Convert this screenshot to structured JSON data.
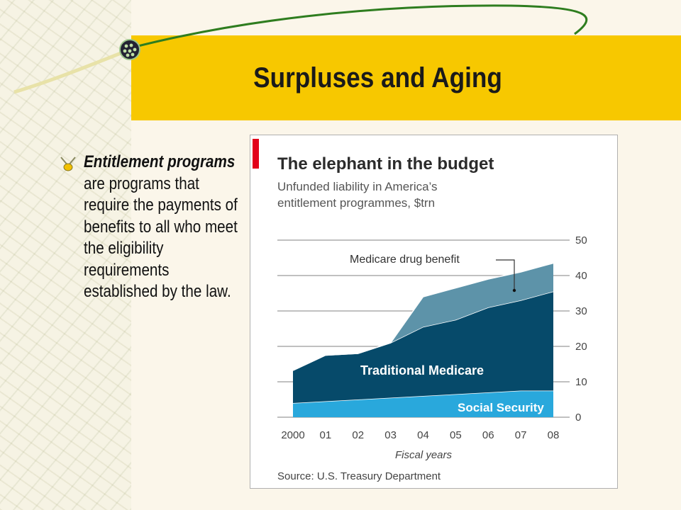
{
  "slide": {
    "title": "Surpluses and Aging",
    "bullet_term": "Entitlement programs",
    "bullet_text": " are programs that require the payments of benefits to all who meet the eligibility requirements established by the law."
  },
  "chart_data": {
    "type": "area",
    "title": "The elephant in the budget",
    "subtitle_line1": "Unfunded liability in America’s",
    "subtitle_line2": "entitlement programmes, $trn",
    "xlabel": "Fiscal years",
    "source": "Source: U.S. Treasury Department",
    "categories": [
      "2000",
      "01",
      "02",
      "03",
      "04",
      "05",
      "06",
      "07",
      "08"
    ],
    "yticks": [
      "0",
      "10",
      "20",
      "30",
      "40",
      "50"
    ],
    "ylim": [
      0,
      50
    ],
    "stacking": "cumulative",
    "series": [
      {
        "name": "Social Security",
        "values": [
          4,
          4.5,
          5,
          5.5,
          6,
          6.5,
          7,
          7.5,
          7.5
        ],
        "color": "#29a8dc"
      },
      {
        "name": "Traditional Medicare",
        "values": [
          13.2,
          17.5,
          18,
          21,
          25.5,
          27.5,
          31,
          33,
          35.5
        ],
        "color": "#064a6a"
      },
      {
        "name": "Medicare drug benefit",
        "values": [
          13.2,
          17.5,
          18,
          21,
          34,
          36.5,
          39,
          41,
          43.5
        ],
        "color": "#5d93a9"
      }
    ],
    "accent_color": "#e2001a"
  }
}
